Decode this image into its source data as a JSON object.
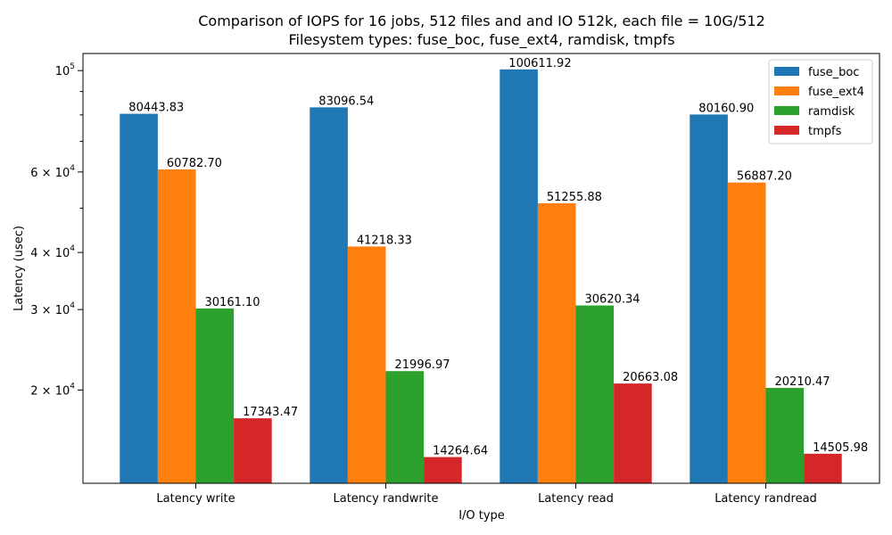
{
  "chart_data": {
    "type": "bar",
    "title_line1": "Comparison of IOPS for 16 jobs, 512 files and  and IO 512k, each file = 10G/512",
    "title_line2": "Filesystem types: fuse_boc, fuse_ext4, ramdisk, tmpfs",
    "xlabel": "I/O type",
    "ylabel": "Latency (usec)",
    "y_scale": "log",
    "ylim": [
      12500,
      109000
    ],
    "categories": [
      "Latency write",
      "Latency randwrite",
      "Latency read",
      "Latency randread"
    ],
    "series": [
      {
        "name": "fuse_boc",
        "color": "#1f77b4",
        "values": [
          80443.83,
          83096.54,
          100611.92,
          80160.9
        ],
        "labels": [
          "80443.83",
          "83096.54",
          "100611.92",
          "80160.90"
        ]
      },
      {
        "name": "fuse_ext4",
        "color": "#ff7f0e",
        "values": [
          60782.7,
          41218.33,
          51255.88,
          56887.2
        ],
        "labels": [
          "60782.70",
          "41218.33",
          "51255.88",
          "56887.20"
        ]
      },
      {
        "name": "ramdisk",
        "color": "#2ca02c",
        "values": [
          30161.1,
          21996.97,
          30620.34,
          20210.47
        ],
        "labels": [
          "30161.10",
          "21996.97",
          "30620.34",
          "20210.47"
        ]
      },
      {
        "name": "tmpfs",
        "color": "#d62728",
        "values": [
          17343.47,
          14264.64,
          20663.08,
          14505.98
        ],
        "labels": [
          "17343.47",
          "14264.64",
          "20663.08",
          "14505.98"
        ]
      }
    ],
    "y_major_ticks": [
      {
        "value": 20000,
        "mantissa": "2",
        "exponent": "4"
      },
      {
        "value": 30000,
        "mantissa": "3",
        "exponent": "4"
      },
      {
        "value": 40000,
        "mantissa": "4",
        "exponent": "4"
      },
      {
        "value": 60000,
        "mantissa": "6",
        "exponent": "4"
      },
      {
        "value": 100000,
        "mantissa": "",
        "exponent": "5"
      }
    ],
    "y_minor_ticks": [
      50000,
      70000,
      80000,
      90000
    ],
    "legend_position": "top-right",
    "grid": false
  }
}
